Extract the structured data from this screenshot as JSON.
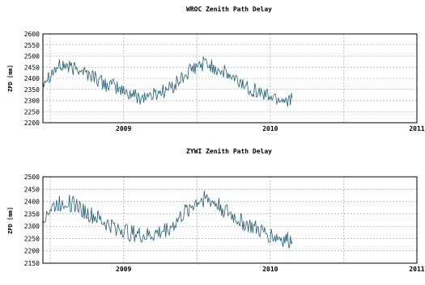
{
  "chart_data": [
    {
      "type": "line",
      "title": "WROC Zenith Path Delay",
      "ylabel": "ZPD [mm]",
      "xlabel": "",
      "xlim": [
        2008.45,
        2011.0
      ],
      "ylim": [
        2200,
        2600
      ],
      "xticks": [
        2009,
        2010,
        2011
      ],
      "yticks": [
        2200,
        2250,
        2300,
        2350,
        2400,
        2450,
        2500,
        2550,
        2600
      ],
      "grid": true,
      "color": "#1f5f7a",
      "series": [
        {
          "x": [
            2008.45,
            2008.5,
            2008.55,
            2008.6,
            2008.65,
            2008.7,
            2008.75,
            2008.8,
            2008.85,
            2008.9,
            2008.95,
            2009.0,
            2009.05,
            2009.1,
            2009.15,
            2009.2,
            2009.25,
            2009.3,
            2009.35,
            2009.4,
            2009.45,
            2009.5,
            2009.55,
            2009.6,
            2009.65,
            2009.7,
            2009.75,
            2009.8,
            2009.85,
            2009.9,
            2009.95,
            2010.0,
            2010.05,
            2010.1,
            2010.15
          ],
          "values": [
            2390,
            2420,
            2450,
            2460,
            2440,
            2450,
            2420,
            2410,
            2380,
            2370,
            2360,
            2340,
            2330,
            2315,
            2320,
            2325,
            2340,
            2350,
            2370,
            2400,
            2430,
            2450,
            2470,
            2455,
            2440,
            2420,
            2395,
            2380,
            2360,
            2345,
            2330,
            2320,
            2310,
            2305,
            2310
          ]
        }
      ]
    },
    {
      "type": "line",
      "title": "ZYWI Zenith Path Delay",
      "ylabel": "ZPD [mm]",
      "xlabel": "",
      "xlim": [
        2008.45,
        2011.0
      ],
      "ylim": [
        2150,
        2500
      ],
      "xticks": [
        2009,
        2010,
        2011
      ],
      "yticks": [
        2150,
        2200,
        2250,
        2300,
        2350,
        2400,
        2450,
        2500
      ],
      "grid": true,
      "color": "#1f5f7a",
      "series": [
        {
          "x": [
            2008.45,
            2008.5,
            2008.55,
            2008.6,
            2008.65,
            2008.7,
            2008.75,
            2008.8,
            2008.85,
            2008.9,
            2008.95,
            2009.0,
            2009.05,
            2009.1,
            2009.15,
            2009.2,
            2009.25,
            2009.3,
            2009.35,
            2009.4,
            2009.45,
            2009.5,
            2009.55,
            2009.6,
            2009.65,
            2009.7,
            2009.75,
            2009.8,
            2009.85,
            2009.9,
            2009.95,
            2010.0,
            2010.05,
            2010.1,
            2010.15
          ],
          "values": [
            2340,
            2370,
            2390,
            2400,
            2390,
            2380,
            2350,
            2340,
            2320,
            2305,
            2295,
            2285,
            2270,
            2265,
            2260,
            2265,
            2275,
            2290,
            2310,
            2345,
            2375,
            2400,
            2410,
            2400,
            2385,
            2360,
            2340,
            2320,
            2305,
            2290,
            2275,
            2265,
            2255,
            2245,
            2240
          ]
        }
      ]
    }
  ]
}
